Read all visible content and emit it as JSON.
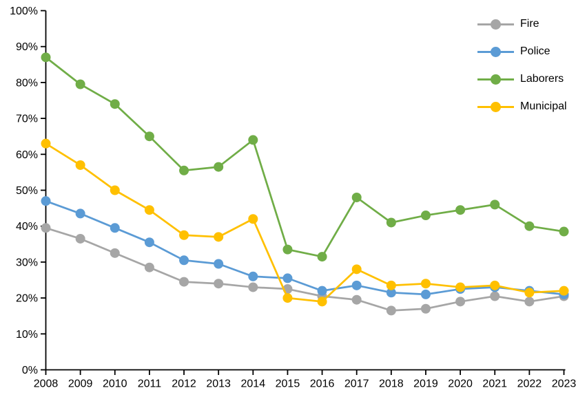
{
  "chart_data": {
    "type": "line",
    "title": "",
    "xlabel": "",
    "ylabel": "",
    "ylim": [
      0,
      100
    ],
    "y_tick_step": 10,
    "y_ticks": [
      "0%",
      "10%",
      "20%",
      "30%",
      "40%",
      "50%",
      "60%",
      "70%",
      "80%",
      "90%",
      "100%"
    ],
    "grid": false,
    "legend_position": "top-right",
    "categories": [
      "2008",
      "2009",
      "2010",
      "2011",
      "2012",
      "2013",
      "2014",
      "2015",
      "2016",
      "2017",
      "2018",
      "2019",
      "2020",
      "2021",
      "2022",
      "2023"
    ],
    "series": [
      {
        "name": "Fire",
        "color": "#A6A6A6",
        "values": [
          39.5,
          36.5,
          32.5,
          28.5,
          24.5,
          24,
          23,
          22.5,
          20.5,
          19.5,
          16.5,
          17,
          19,
          20.5,
          19,
          20.5
        ]
      },
      {
        "name": "Police",
        "color": "#5B9BD5",
        "values": [
          47,
          43.5,
          39.5,
          35.5,
          30.5,
          29.5,
          26,
          25.5,
          22,
          23.5,
          21.5,
          21,
          22.5,
          23,
          22,
          21
        ]
      },
      {
        "name": "Laborers",
        "color": "#70AD47",
        "values": [
          87,
          79.5,
          74,
          65,
          55.5,
          56.5,
          64,
          33.5,
          31.5,
          48,
          41,
          43,
          44.5,
          46,
          40,
          38.5
        ]
      },
      {
        "name": "Municipal",
        "color": "#FFC000",
        "values": [
          63,
          57,
          50,
          44.5,
          37.5,
          37,
          42,
          20,
          19,
          28,
          23.5,
          24,
          23,
          23.5,
          21.5,
          22
        ]
      }
    ]
  }
}
